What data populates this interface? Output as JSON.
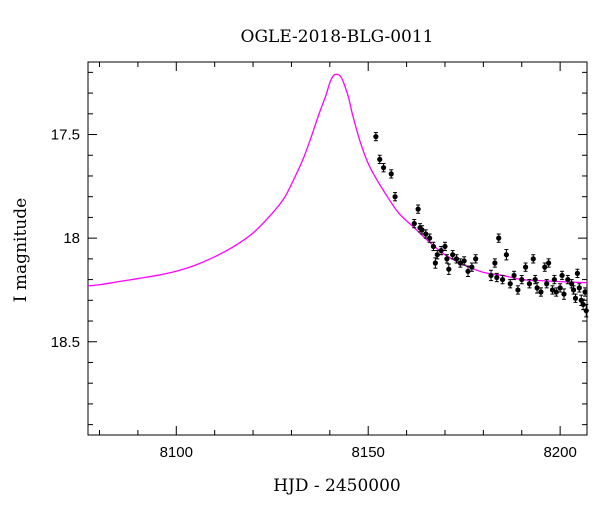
{
  "chart_data": {
    "type": "scatter",
    "title": "OGLE-2018-BLG-0011",
    "xlabel": "HJD - 2450000",
    "ylabel": "I magnitude",
    "xlim": [
      8077,
      8207
    ],
    "ylim": [
      18.95,
      17.15
    ],
    "y_inverted": true,
    "grid": false,
    "x_ticks": [
      8100,
      8150,
      8200
    ],
    "x_tick_labels": [
      "8100",
      "8150",
      "8200"
    ],
    "y_ticks": [
      17.5,
      18,
      18.5
    ],
    "y_tick_labels": [
      "17.5",
      "18",
      "18.5"
    ],
    "colors": {
      "model": "#ff00ff",
      "points": "#000000",
      "axes": "#000000"
    },
    "series": [
      {
        "type": "line",
        "points": [
          [
            8077,
            18.23
          ],
          [
            8080,
            18.225
          ],
          [
            8085,
            18.21
          ],
          [
            8090,
            18.195
          ],
          [
            8095,
            18.18
          ],
          [
            8100,
            18.16
          ],
          [
            8105,
            18.13
          ],
          [
            8110,
            18.09
          ],
          [
            8115,
            18.04
          ],
          [
            8120,
            17.975
          ],
          [
            8125,
            17.88
          ],
          [
            8128,
            17.81
          ],
          [
            8130,
            17.74
          ],
          [
            8133,
            17.62
          ],
          [
            8135,
            17.52
          ],
          [
            8137,
            17.41
          ],
          [
            8139,
            17.31
          ],
          [
            8140,
            17.25
          ],
          [
            8141,
            17.215
          ],
          [
            8142,
            17.21
          ],
          [
            8143,
            17.225
          ],
          [
            8144,
            17.27
          ],
          [
            8145,
            17.33
          ],
          [
            8146,
            17.41
          ],
          [
            8148,
            17.54
          ],
          [
            8150,
            17.64
          ],
          [
            8152,
            17.71
          ],
          [
            8155,
            17.8
          ],
          [
            8158,
            17.88
          ],
          [
            8162,
            17.95
          ],
          [
            8166,
            18.02
          ],
          [
            8170,
            18.08
          ],
          [
            8175,
            18.13
          ],
          [
            8180,
            18.165
          ],
          [
            8185,
            18.18
          ],
          [
            8190,
            18.2
          ],
          [
            8195,
            18.205
          ],
          [
            8200,
            18.21
          ],
          [
            8207,
            18.215
          ]
        ]
      },
      {
        "type": "scatter",
        "points": [
          [
            8152,
            17.51,
            0.02
          ],
          [
            8153,
            17.62,
            0.02
          ],
          [
            8154,
            17.66,
            0.02
          ],
          [
            8156,
            17.69,
            0.02
          ],
          [
            8157,
            17.8,
            0.02
          ],
          [
            8162,
            17.93,
            0.02
          ],
          [
            8163,
            17.86,
            0.02
          ],
          [
            8163.5,
            17.95,
            0.02
          ],
          [
            8164,
            17.96,
            0.02
          ],
          [
            8165,
            17.98,
            0.02
          ],
          [
            8166,
            18.0,
            0.02
          ],
          [
            8167,
            18.04,
            0.02
          ],
          [
            8167.5,
            18.12,
            0.025
          ],
          [
            8168,
            18.08,
            0.02
          ],
          [
            8169,
            18.06,
            0.02
          ],
          [
            8170,
            18.04,
            0.02
          ],
          [
            8170.5,
            18.1,
            0.02
          ],
          [
            8171,
            18.15,
            0.025
          ],
          [
            8172,
            18.08,
            0.02
          ],
          [
            8173,
            18.1,
            0.02
          ],
          [
            8174,
            18.12,
            0.02
          ],
          [
            8175,
            18.11,
            0.02
          ],
          [
            8176,
            18.16,
            0.025
          ],
          [
            8177,
            18.14,
            0.02
          ],
          [
            8178,
            18.1,
            0.02
          ],
          [
            8182,
            18.18,
            0.025
          ],
          [
            8183,
            18.12,
            0.02
          ],
          [
            8183.5,
            18.19,
            0.02
          ],
          [
            8184,
            18.0,
            0.02
          ],
          [
            8185,
            18.2,
            0.02
          ],
          [
            8186,
            18.08,
            0.025
          ],
          [
            8187,
            18.22,
            0.02
          ],
          [
            8188,
            18.18,
            0.02
          ],
          [
            8189,
            18.25,
            0.02
          ],
          [
            8190,
            18.2,
            0.02
          ],
          [
            8191,
            18.14,
            0.02
          ],
          [
            8192,
            18.22,
            0.02
          ],
          [
            8193,
            18.1,
            0.02
          ],
          [
            8193.5,
            18.2,
            0.02
          ],
          [
            8194,
            18.24,
            0.025
          ],
          [
            8195,
            18.26,
            0.02
          ],
          [
            8196,
            18.14,
            0.02
          ],
          [
            8196.5,
            18.22,
            0.02
          ],
          [
            8197,
            18.12,
            0.02
          ],
          [
            8198,
            18.25,
            0.02
          ],
          [
            8198.5,
            18.2,
            0.02
          ],
          [
            8199,
            18.26,
            0.02
          ],
          [
            8200,
            18.24,
            0.02
          ],
          [
            8200.5,
            18.18,
            0.02
          ],
          [
            8201,
            18.27,
            0.025
          ],
          [
            8202,
            18.2,
            0.02
          ],
          [
            8203,
            18.22,
            0.02
          ],
          [
            8203.5,
            18.25,
            0.02
          ],
          [
            8204,
            18.29,
            0.02
          ],
          [
            8204.5,
            18.17,
            0.02
          ],
          [
            8205,
            18.24,
            0.02
          ],
          [
            8205.5,
            18.3,
            0.025
          ],
          [
            8206,
            18.32,
            0.025
          ],
          [
            8206.5,
            18.26,
            0.02
          ],
          [
            8206.8,
            18.35,
            0.03
          ]
        ]
      }
    ]
  }
}
